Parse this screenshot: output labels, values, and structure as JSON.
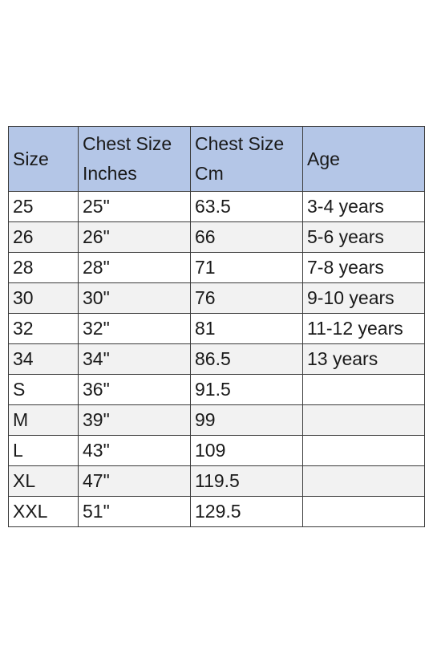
{
  "table": {
    "headers": [
      "Size",
      "Chest Size Inches",
      "Chest Size Cm",
      "Age"
    ],
    "rows": [
      [
        "25",
        "25\"",
        "63.5",
        "3-4 years"
      ],
      [
        "26",
        "26\"",
        "66",
        "5-6 years"
      ],
      [
        "28",
        "28\"",
        "71",
        "7-8 years"
      ],
      [
        "30",
        "30\"",
        "76",
        "9-10 years"
      ],
      [
        "32",
        "32\"",
        "81",
        "11-12 years"
      ],
      [
        "34",
        "34\"",
        "86.5",
        "13 years"
      ],
      [
        "S",
        "36\"",
        "91.5",
        ""
      ],
      [
        "M",
        "39\"",
        "99",
        ""
      ],
      [
        "L",
        "43\"",
        "109",
        ""
      ],
      [
        "XL",
        "47\"",
        "119.5",
        ""
      ],
      [
        "XXL",
        "51\"",
        "129.5",
        ""
      ]
    ]
  },
  "colors": {
    "header_background": "#b4c6e7",
    "alternate_row_background": "#f2f2f2",
    "border": "#3a3a3a"
  }
}
